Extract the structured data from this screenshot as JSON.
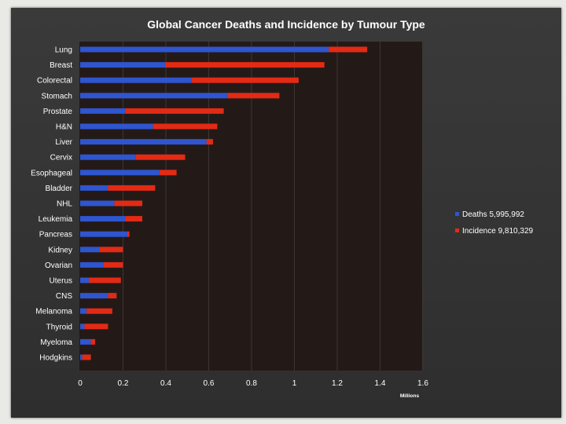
{
  "chart_data": {
    "type": "bar",
    "orientation": "horizontal",
    "stacked": true,
    "title": "Global Cancer Deaths and Incidence by Tumour Type",
    "xlabel": "Millions",
    "ylabel": "",
    "xlim": [
      0,
      1.6
    ],
    "xticks": [
      "0",
      "0.2",
      "0.4",
      "0.6",
      "0.8",
      "1",
      "1.2",
      "1.4",
      "1.6"
    ],
    "grid": true,
    "legend_position": "right",
    "categories": [
      "Lung",
      "Breast",
      "Colorectal",
      "Stomach",
      "Prostate",
      "H&N",
      "Liver",
      "Cervix",
      "Esophageal",
      "Bladder",
      "NHL",
      "Leukemia",
      "Pancreas",
      "Kidney",
      "Ovarian",
      "Uterus",
      "CNS",
      "Melanoma",
      "Thyroid",
      "Myeloma",
      "Hodgkins"
    ],
    "series": [
      {
        "name": "Deaths 5,995,992",
        "color": "#2f55cf",
        "values": [
          1.16,
          0.4,
          0.52,
          0.69,
          0.21,
          0.34,
          0.59,
          0.26,
          0.37,
          0.13,
          0.16,
          0.21,
          0.22,
          0.09,
          0.11,
          0.04,
          0.13,
          0.03,
          0.02,
          0.05,
          0.01
        ]
      },
      {
        "name": "Incidence 9,810,329",
        "color": "#e32a15",
        "values": [
          0.18,
          0.74,
          0.5,
          0.24,
          0.46,
          0.3,
          0.03,
          0.23,
          0.08,
          0.22,
          0.13,
          0.08,
          0.01,
          0.11,
          0.09,
          0.15,
          0.04,
          0.12,
          0.11,
          0.02,
          0.04
        ]
      }
    ]
  }
}
